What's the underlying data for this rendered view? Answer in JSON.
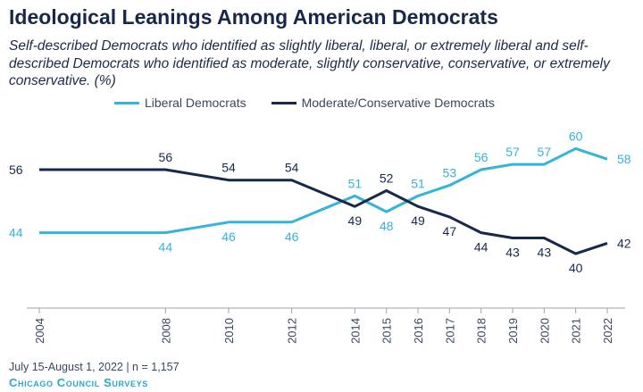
{
  "header": {
    "title": "Ideological Leanings Among American Democrats",
    "subtitle": "Self-described Democrats who identified as slightly liberal, liberal, or extremely liberal and self-described Democrats who identified as moderate, slightly conservative, conservative, or extremely conservative. (%)"
  },
  "footer": {
    "note": "July 15-August 1, 2022 | n = 1,157",
    "brand": "Chicago Council Surveys"
  },
  "colors": {
    "liberal": "#35b3d8",
    "moderate": "#17284a",
    "axis": "#9aa3b2"
  },
  "chart_data": {
    "type": "line",
    "x": [
      2004,
      2008,
      2010,
      2012,
      2014,
      2015,
      2016,
      2017,
      2018,
      2019,
      2020,
      2021,
      2022
    ],
    "x_tick_labels": [
      "2004",
      "2008",
      "2010",
      "2012",
      "2014",
      "2015",
      "2016",
      "2017",
      "2018",
      "2019",
      "2020",
      "2021",
      "2022"
    ],
    "series": [
      {
        "name": "Liberal Democrats",
        "values": [
          44,
          44,
          46,
          46,
          51,
          48,
          51,
          53,
          56,
          57,
          57,
          60,
          58
        ]
      },
      {
        "name": "Moderate/Conservative Democrats",
        "values": [
          56,
          56,
          54,
          54,
          49,
          52,
          49,
          47,
          44,
          43,
          43,
          40,
          42
        ]
      }
    ],
    "title": "Ideological Leanings Among American Democrats",
    "xlabel": "",
    "ylabel": "",
    "ylim": [
      30,
      65
    ],
    "grid": false,
    "legend": "top"
  }
}
